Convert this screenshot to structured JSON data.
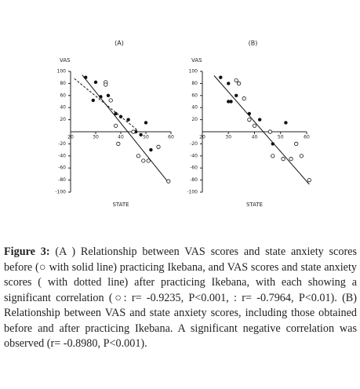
{
  "chart_data": [
    {
      "type": "scatter",
      "title": "(A)",
      "y_label": "VAS",
      "x_label": "STATE",
      "xlim": [
        20,
        60
      ],
      "xticks": [
        20,
        30,
        40,
        50,
        60
      ],
      "ylim": [
        -100,
        100
      ],
      "yticks": [
        100,
        80,
        60,
        40,
        20,
        -20,
        -40,
        -60,
        -80,
        -100
      ],
      "color": "#111",
      "series": [
        {
          "marker": "filled",
          "x": [
            26,
            30,
            29,
            32,
            35,
            38,
            40,
            43,
            46,
            48,
            50,
            52
          ],
          "values": [
            90,
            82,
            52,
            58,
            60,
            30,
            25,
            20,
            0,
            -5,
            15,
            -30
          ]
        },
        {
          "marker": "open",
          "x": [
            34,
            34,
            36,
            38,
            39,
            45,
            47,
            49,
            51,
            55,
            59
          ],
          "values": [
            82,
            78,
            52,
            10,
            -20,
            0,
            -40,
            -48,
            -48,
            -25,
            -82
          ]
        }
      ],
      "lines": [
        {
          "style": "solid",
          "x": [
            24.6,
            58.8
          ],
          "values": [
            94,
            -83
          ]
        },
        {
          "style": "dotted",
          "x": [
            21.5,
            46.5
          ],
          "values": [
            88,
            3
          ]
        }
      ]
    },
    {
      "type": "scatter",
      "title": "(B)",
      "y_label": "VAS",
      "x_label": "STATE",
      "xlim": [
        20,
        60
      ],
      "xticks": [
        20,
        30,
        40,
        50,
        60
      ],
      "ylim": [
        -100,
        100
      ],
      "yticks": [
        100,
        80,
        60,
        40,
        20,
        -20,
        -40,
        -60,
        -80,
        -100
      ],
      "color": "#111",
      "series": [
        {
          "marker": "filled",
          "x": [
            27,
            30,
            31,
            33,
            30,
            38,
            42,
            47,
            52
          ],
          "values": [
            90,
            80,
            50,
            60,
            50,
            30,
            20,
            -20,
            15
          ]
        },
        {
          "marker": "open",
          "x": [
            33,
            34,
            36,
            38,
            40,
            46,
            47,
            51,
            54,
            56,
            58,
            61
          ],
          "values": [
            85,
            80,
            55,
            20,
            10,
            0,
            -40,
            -45,
            -45,
            -20,
            -40,
            -80
          ]
        }
      ],
      "lines": [
        {
          "style": "solid",
          "x": [
            24.5,
            61
          ],
          "values": [
            93,
            -87
          ]
        }
      ]
    }
  ],
  "caption": {
    "label": "Figure 3:",
    "text": "(A ) Relationship between VAS scores and state anxiety scores before (○ with solid line) practicing Ikebana, and VAS scores and state anxiety scores ( with dotted line) after practicing Ikebana, with each showing a significant correlation (○: r= -0.9235, P<0.001, : r= -0.7964, P<0.01). (B) Relationship between VAS and state anxiety scores, including those obtained before and after practicing Ikebana. A significant negative correlation was observed (r= -0.8980, P<0.001)."
  }
}
